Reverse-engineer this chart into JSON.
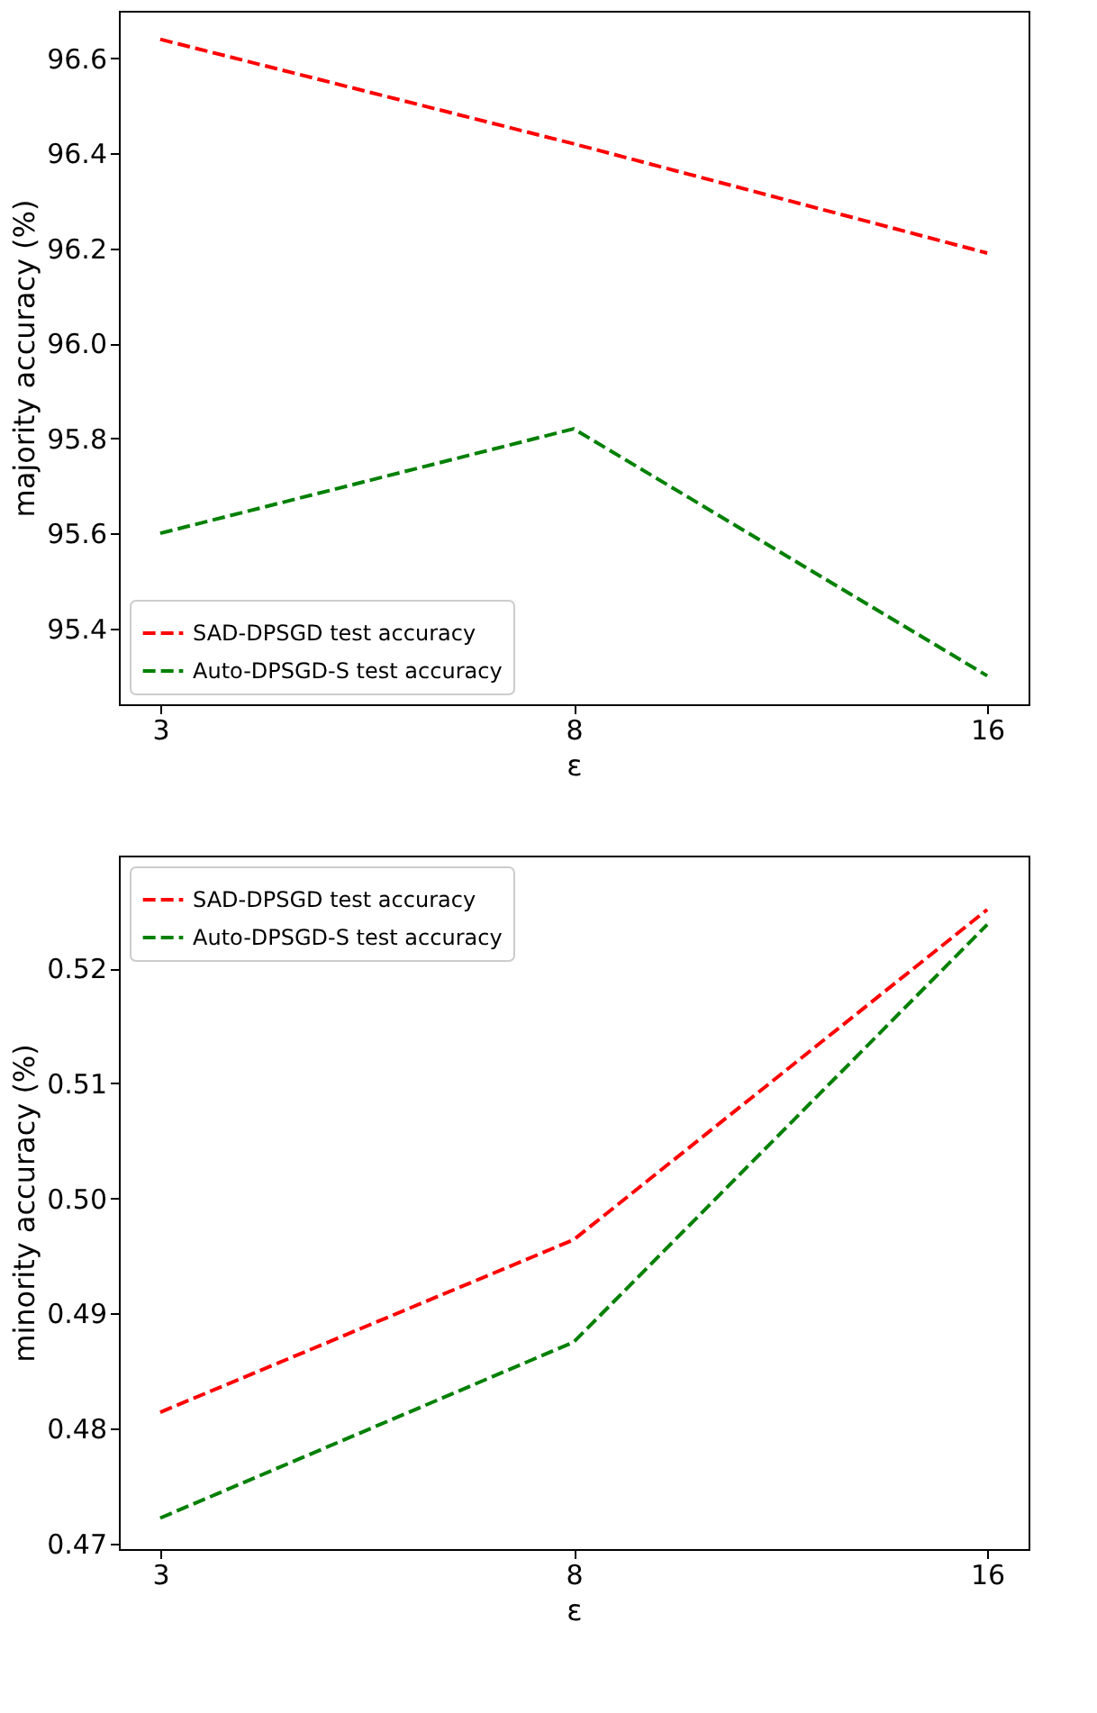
{
  "chart_data": [
    {
      "type": "line",
      "xlabel": "ε",
      "ylabel": "majority accuracy (%)",
      "categories": [
        "3",
        "8",
        "16"
      ],
      "ylim": [
        95.24,
        96.7
      ],
      "yticks": [
        95.4,
        95.6,
        95.8,
        {
          "value": 96.0,
          "label": "96.0"
        },
        96.2,
        96.4,
        96.6
      ],
      "grid": false,
      "legend": "bottom left",
      "line_style": "dashed",
      "marker": "none",
      "series": [
        {
          "name": "SAD-DPSGD test accuracy",
          "color": "#ff0000",
          "values": [
            96.64,
            96.42,
            96.19
          ]
        },
        {
          "name": "Auto-DPSGD-S test accuracy",
          "color": "#008000",
          "values": [
            95.6,
            95.82,
            95.3
          ]
        }
      ]
    },
    {
      "type": "line",
      "xlabel": "ε",
      "ylabel": "minority accuracy (%)",
      "categories": [
        "3",
        "8",
        "16"
      ],
      "ylim": [
        0.4695,
        0.5298
      ],
      "yticks": [
        0.47,
        0.48,
        0.49,
        {
          "value": 0.5,
          "label": "0.50"
        },
        0.51,
        0.52
      ],
      "grid": false,
      "legend": "top left",
      "line_style": "dashed",
      "marker": "none",
      "series": [
        {
          "name": "SAD-DPSGD test accuracy",
          "color": "#ff0000",
          "values": [
            0.4814,
            0.4964,
            0.5251
          ]
        },
        {
          "name": "Auto-DPSGD-S test accuracy",
          "color": "#008000",
          "values": [
            0.4722,
            0.4875,
            0.5238
          ]
        }
      ]
    }
  ]
}
